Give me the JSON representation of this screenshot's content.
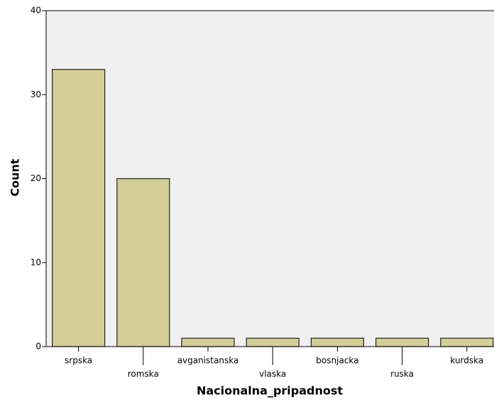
{
  "chart_data": {
    "type": "bar",
    "y_label": "Count",
    "x_label": "Nacionalna_pripadnost",
    "categories": [
      "srpska",
      "romska",
      "avganistanska",
      "vlaska",
      "bosnjacka",
      "ruska",
      "kurdska"
    ],
    "values": [
      33,
      20,
      1,
      1,
      1,
      1,
      1
    ],
    "color": "#d3ce97",
    "ylim": [
      0,
      40
    ],
    "yticks": [
      0,
      10,
      20,
      30,
      40
    ],
    "grid": false
  }
}
